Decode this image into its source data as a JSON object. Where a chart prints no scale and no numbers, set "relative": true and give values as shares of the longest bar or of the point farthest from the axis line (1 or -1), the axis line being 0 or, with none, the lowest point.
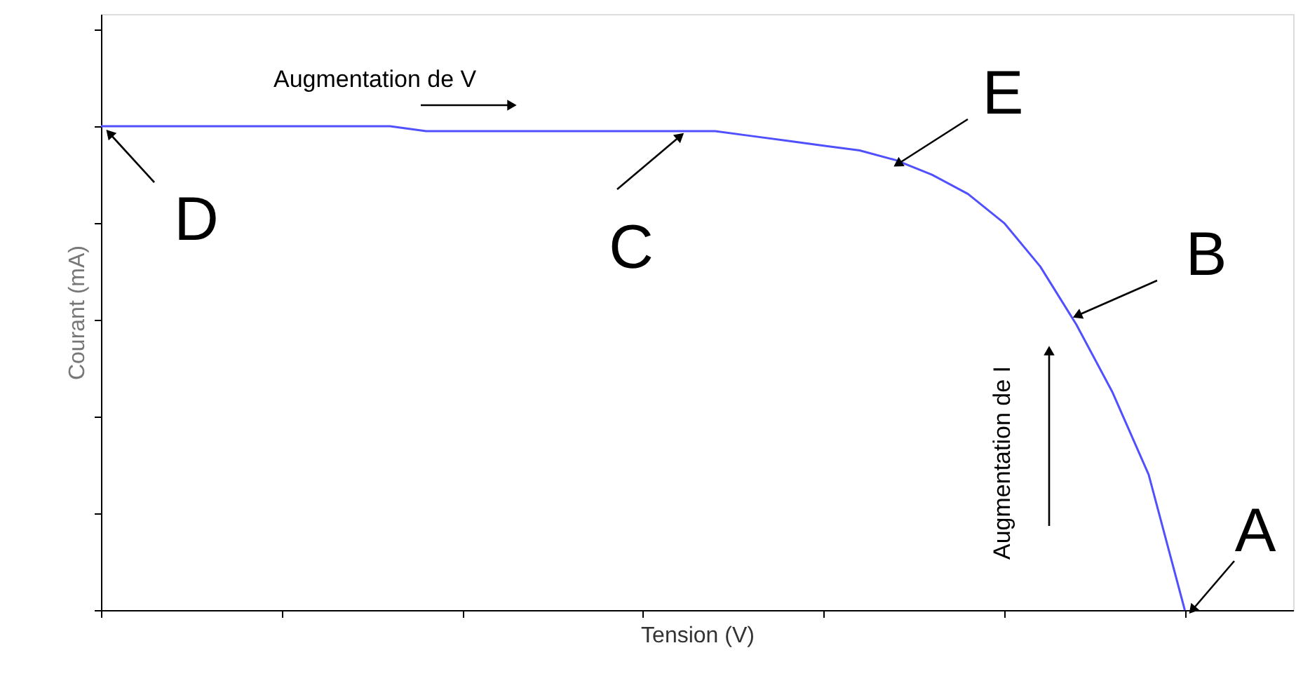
{
  "chart_data": {
    "type": "line",
    "relative": true,
    "xlabel": "Tension (V)",
    "ylabel": "Courant (mA)",
    "categories": [
      null,
      null,
      null,
      null,
      null,
      null,
      null,
      null,
      null,
      null,
      null,
      null,
      null,
      null,
      null,
      null,
      null,
      null,
      null,
      null,
      null,
      null,
      null,
      null,
      null,
      null,
      null,
      null,
      null,
      null,
      null,
      null,
      null,
      null
    ],
    "series": [
      {
        "color": "#5050ff",
        "values": [
          1.0,
          1.0,
          1.0,
          1.0,
          1.0,
          1.0,
          1.0,
          1.0,
          1.0,
          0.99,
          0.99,
          0.99,
          0.99,
          0.99,
          0.99,
          0.99,
          0.99,
          0.99,
          0.98,
          0.97,
          0.96,
          0.95,
          0.93,
          0.9,
          0.86,
          0.8,
          0.71,
          0.59,
          0.45,
          0.28,
          0.0,
          null,
          null,
          null
        ]
      }
    ],
    "annotations": [
      "Augmentation de V",
      "Augmentation de I",
      "D",
      "C",
      "E",
      "B",
      "A"
    ],
    "grid": false,
    "marker": "none",
    "line_style": "solid",
    "tick_labels": false
  }
}
